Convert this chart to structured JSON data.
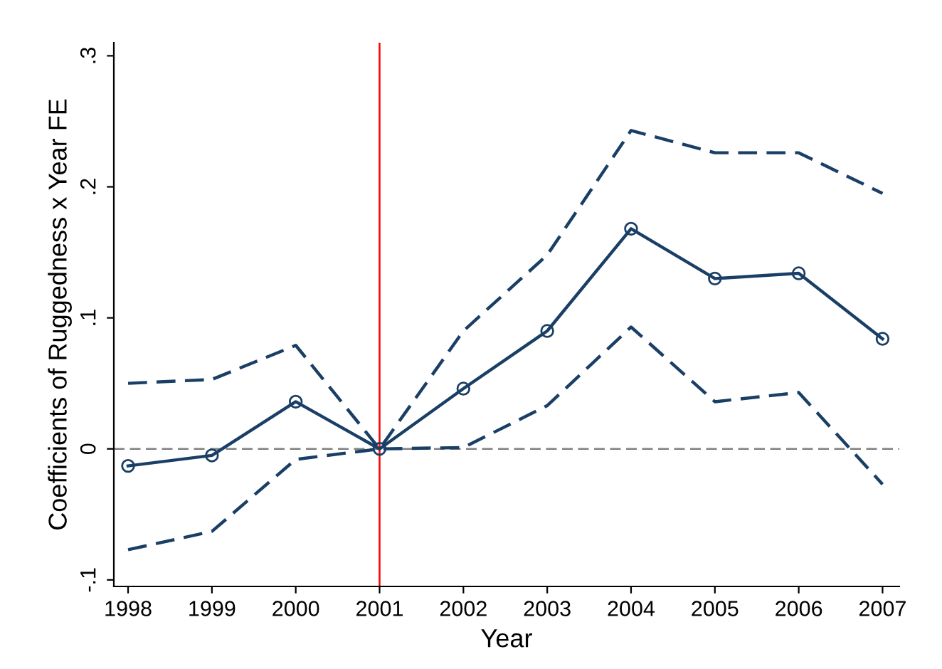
{
  "chart_data": {
    "type": "line",
    "xlabel": "Year",
    "ylabel": "Coefficients of Ruggedness x Year FE",
    "x": [
      1998,
      1999,
      2000,
      2001,
      2002,
      2003,
      2004,
      2005,
      2006,
      2007
    ],
    "series": [
      {
        "color": "#1a3f66",
        "marker": "circle",
        "line_style": "solid",
        "values": [
          -0.013,
          -0.005,
          0.036,
          0,
          0.046,
          0.09,
          0.168,
          0.13,
          0.134,
          0.084
        ]
      },
      {
        "color": "#1a3f66",
        "marker": "none",
        "line_style": "dashed",
        "values": [
          0.05,
          0.053,
          0.079,
          0,
          0.09,
          0.148,
          0.243,
          0.226,
          0.226,
          0.195
        ]
      },
      {
        "color": "#1a3f66",
        "marker": "none",
        "line_style": "dashed",
        "values": [
          -0.077,
          -0.063,
          -0.008,
          0,
          0.001,
          0.033,
          0.093,
          0.036,
          0.043,
          -0.027
        ]
      }
    ],
    "xlim": [
      1997.83,
      2007.2
    ],
    "ylim": [
      -0.105,
      0.31
    ],
    "xticks": [
      1998,
      1999,
      2000,
      2001,
      2002,
      2003,
      2004,
      2005,
      2006,
      2007
    ],
    "yticks": [
      {
        "value": -0.1,
        "label": "-.1"
      },
      {
        "value": 0,
        "label": "0"
      },
      {
        "value": 0.1,
        "label": ".1"
      },
      {
        "value": 0.2,
        "label": ".2"
      },
      {
        "value": 0.3,
        "label": ".3"
      }
    ],
    "ref_lines": [
      {
        "axis": "y",
        "value": 0,
        "label": null,
        "color": "#808080",
        "line_style": "dashed"
      },
      {
        "axis": "x",
        "value": 2001,
        "label": null,
        "color": "#ff0000",
        "line_style": "solid"
      }
    ],
    "grid": false,
    "legend": false
  }
}
